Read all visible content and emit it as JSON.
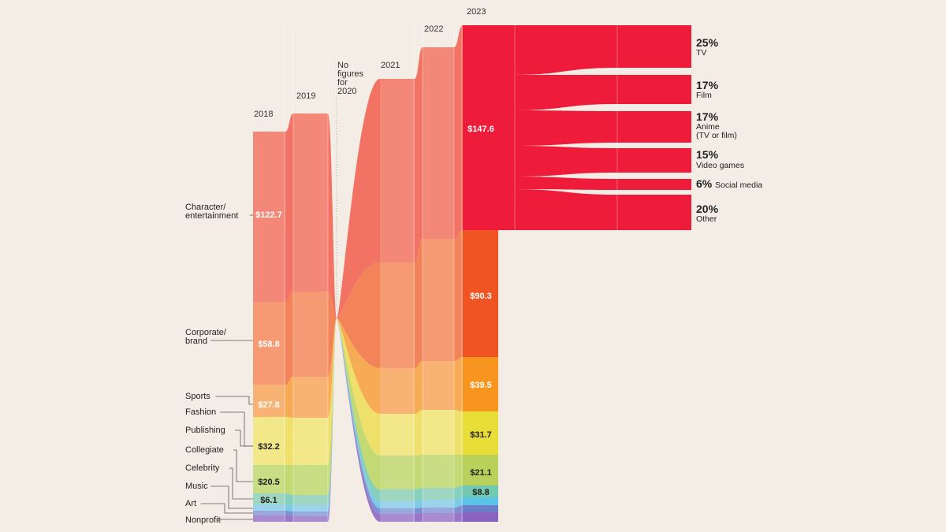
{
  "chart_data": {
    "type": "area",
    "title": "",
    "years": [
      "2018",
      "2019",
      "2020",
      "2021",
      "2022",
      "2023"
    ],
    "missing_year_note": [
      "No",
      "figures",
      "for",
      "2020"
    ],
    "total_values": [
      280,
      296,
      0,
      310,
      330,
      350
    ],
    "unit": "$",
    "categories": [
      {
        "name": [
          "Character/",
          "entertainment"
        ],
        "color": "#f48878",
        "color2023": "#ee1c3a",
        "label_2018": "$122.7",
        "label_2023": "$147.6",
        "values": [
          122.7,
          128,
          null,
          136,
          142,
          147.6
        ]
      },
      {
        "name": [
          "Corporate/",
          "brand"
        ],
        "color": "#f59a72",
        "color2023": "#f05423",
        "label_2018": "$58.8",
        "label_2023": "$90.3",
        "values": [
          58.8,
          62,
          null,
          75,
          85,
          90.3
        ]
      },
      {
        "name": [
          "Sports"
        ],
        "color": "#f8b274",
        "color2023": "#f7951e",
        "label_2018": "$27.8",
        "label_2023": "$39.5",
        "values": [
          27.8,
          30,
          null,
          34,
          37,
          39.5
        ]
      },
      {
        "name": [
          "Fashion"
        ],
        "color": "#f2e88a",
        "color2023": "#e9dd37",
        "label_2018": "",
        "label_2023": "$31.7",
        "values": [
          null,
          null,
          null,
          null,
          null,
          31.7
        ]
      },
      {
        "name": [
          "Publishing"
        ],
        "color": "#f2e88a",
        "color2023": "#e9dd37",
        "label_2018": "$32.2",
        "label_2023": "",
        "values": [
          32.2,
          31,
          null,
          31,
          31.5,
          null
        ]
      },
      {
        "name": [
          "Collegiate"
        ],
        "color": "#c9dd85",
        "color2023": "#b9d15a",
        "label_2018": "$20.5",
        "label_2023": "$21.1",
        "values": [
          20.5,
          20.7,
          null,
          20.8,
          21,
          21.1
        ]
      },
      {
        "name": [
          "Celebrity"
        ],
        "color": "#9fd6c2",
        "color2023": "#72c8b0",
        "label_2018": "$6.1",
        "label_2023": "$8.8",
        "values": [
          6.1,
          6.8,
          null,
          7.5,
          8.2,
          8.8
        ]
      },
      {
        "name": [
          "Music"
        ],
        "color": "#9ad3ea",
        "color2023": "#5cc3e8",
        "label_2018": "",
        "label_2023": "",
        "values": [
          null,
          null,
          null,
          null,
          null,
          null
        ]
      },
      {
        "name": [
          "Art"
        ],
        "color": "#9aa9dd",
        "color2023": "#6b7ec9",
        "label_2018": "",
        "label_2023": "",
        "values": [
          null,
          null,
          null,
          null,
          null,
          null
        ]
      },
      {
        "name": [
          "Nonprofit"
        ],
        "color": "#a98bd0",
        "color2023": "#8a62c0",
        "label_2018": "",
        "label_2023": "",
        "values": [
          null,
          null,
          null,
          null,
          null,
          null
        ]
      }
    ],
    "breakdown_2023": {
      "of_category": "Character/entertainment",
      "segments": [
        {
          "pct": "25%",
          "label": [
            "TV"
          ],
          "value": 25
        },
        {
          "pct": "17%",
          "label": [
            "Film"
          ],
          "value": 17
        },
        {
          "pct": "17%",
          "label": [
            "Anime",
            "(TV or film)"
          ],
          "value": 17
        },
        {
          "pct": "15%",
          "label": [
            "Video games"
          ],
          "value": 15
        },
        {
          "pct": "6%",
          "label": [
            "Social media"
          ],
          "value": 6
        },
        {
          "pct": "20%",
          "label": [
            "Other"
          ],
          "value": 20
        }
      ],
      "color": "#ee1c3a"
    }
  }
}
